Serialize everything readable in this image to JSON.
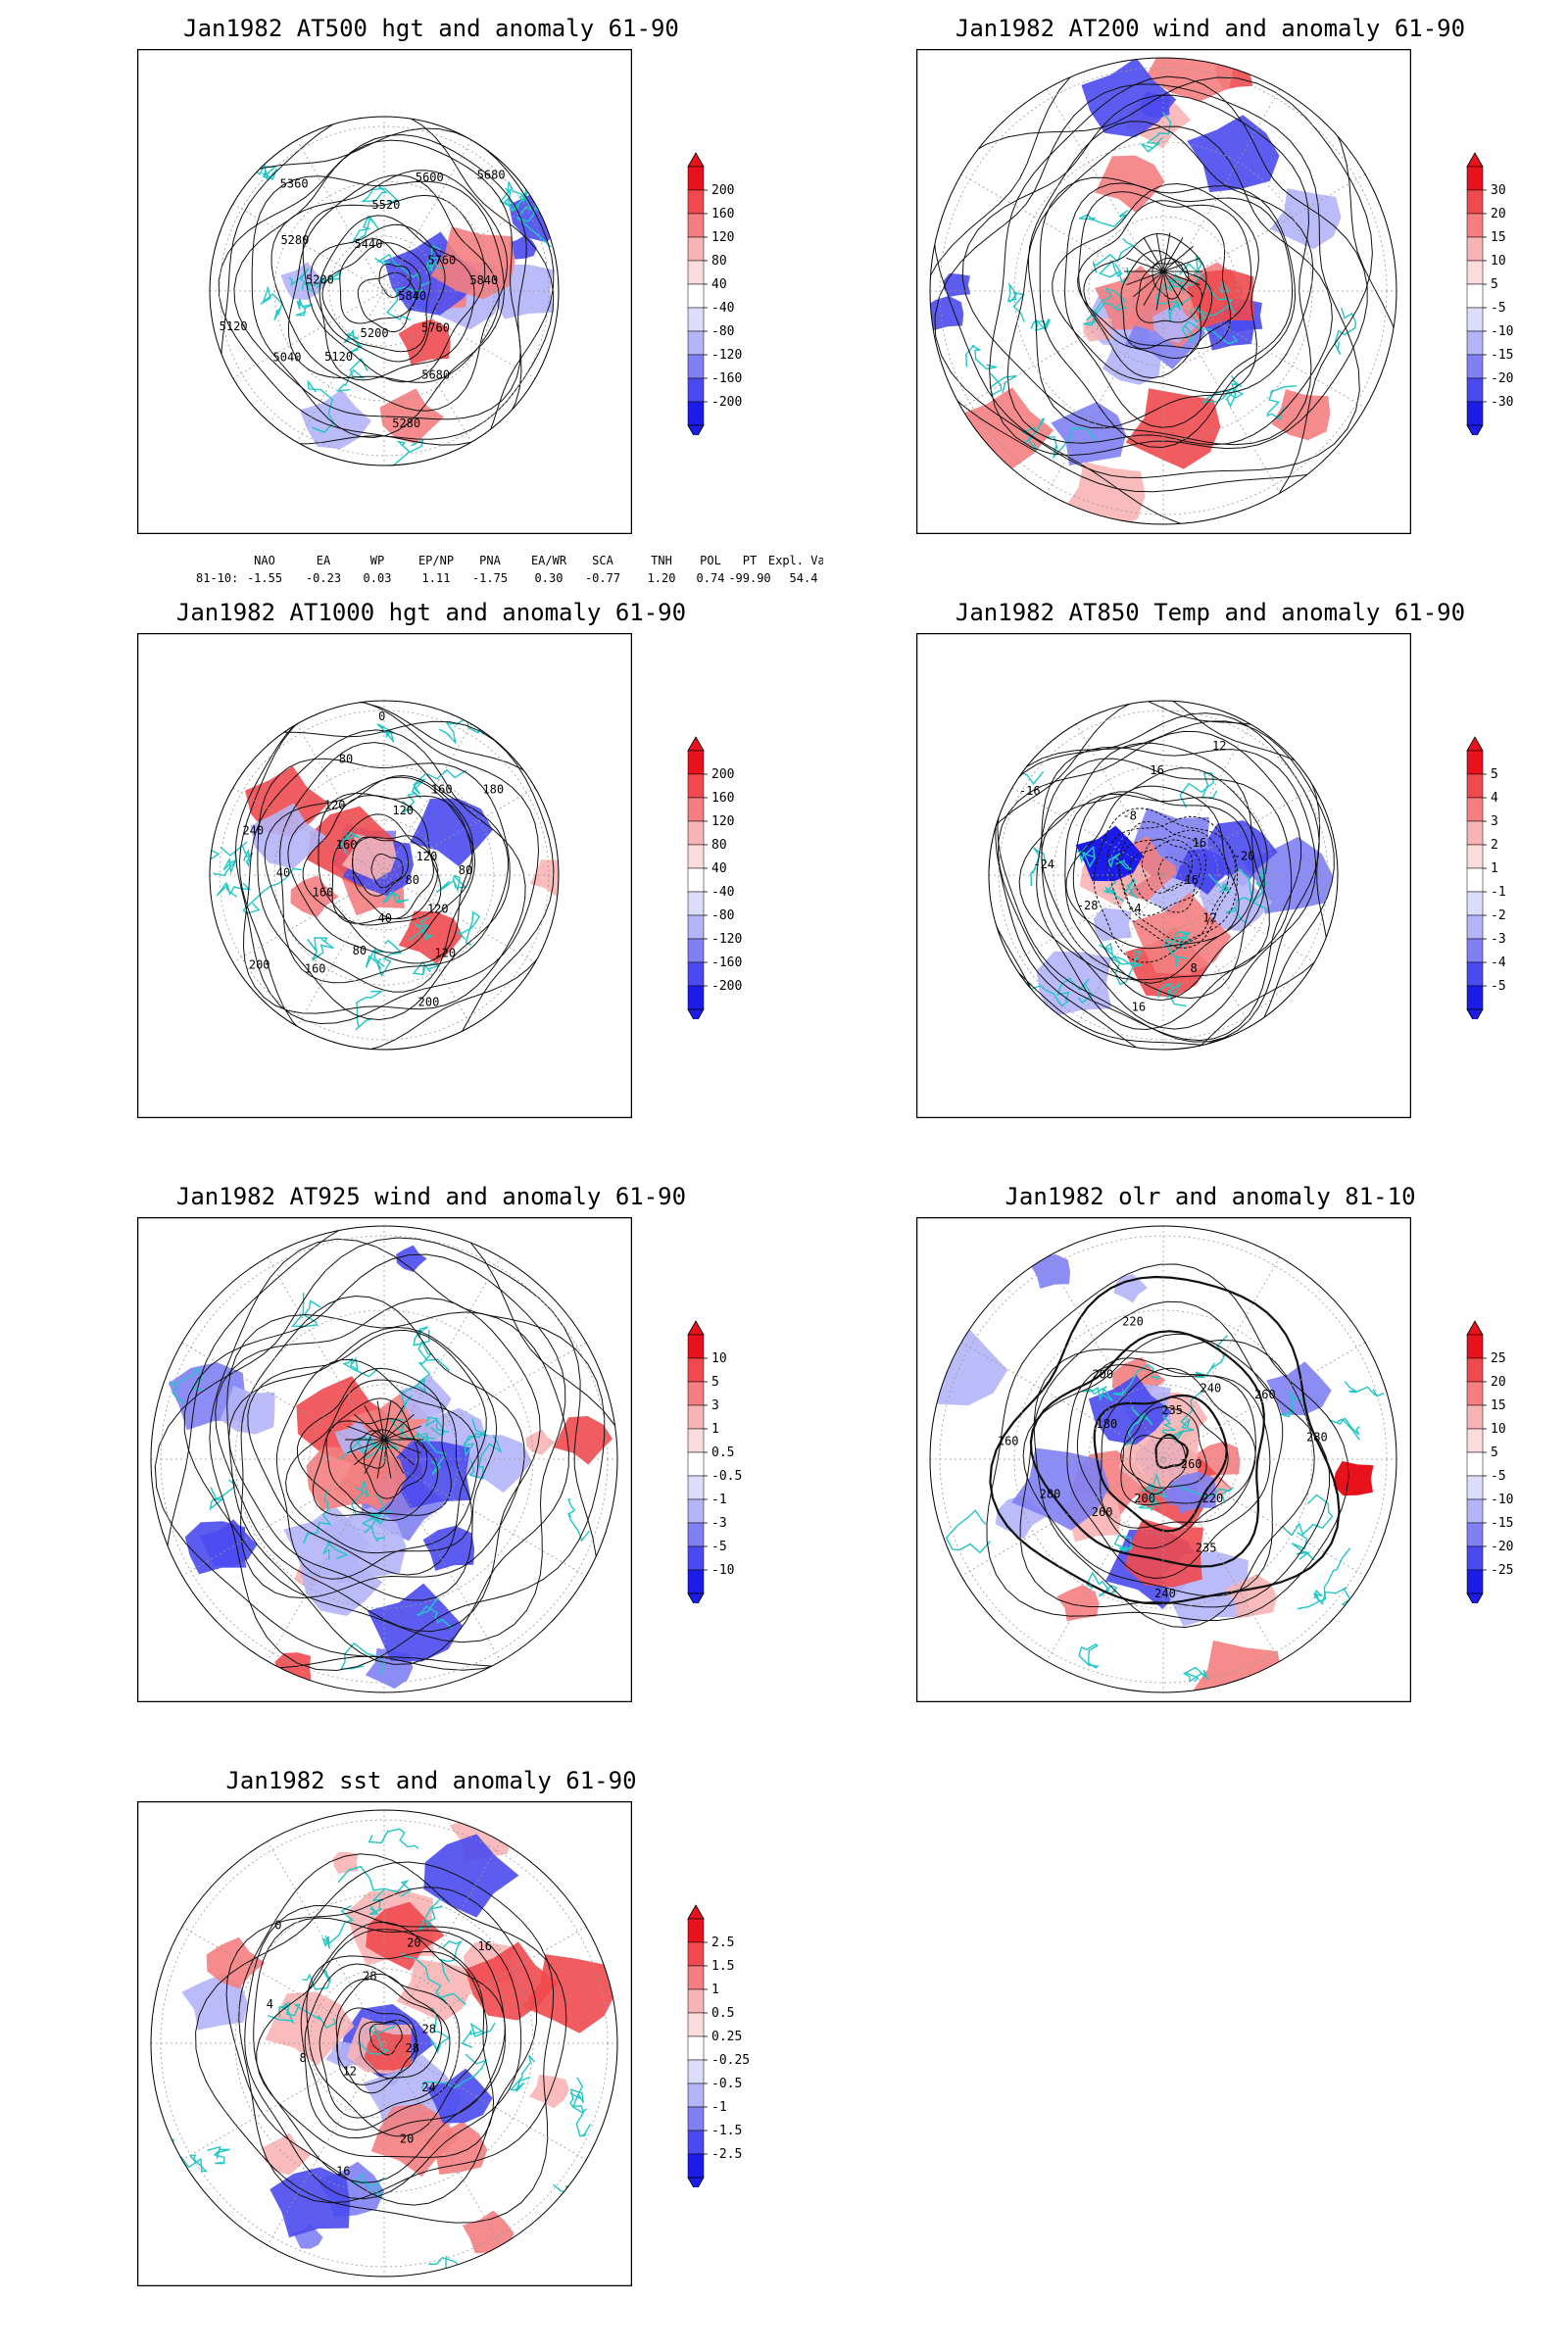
{
  "panels": [
    {
      "id": "p1",
      "title": "Jan1982 AT500 hgt and anomaly 61-90",
      "colorbar": [
        "200",
        "160",
        "120",
        "80",
        "40",
        "-40",
        "-80",
        "-120",
        "-160",
        "-200"
      ],
      "contour_labels": [
        "5840",
        "5760",
        "5680",
        "5280",
        "5200",
        "5120",
        "5040",
        "5120",
        "5200",
        "5280",
        "5360",
        "5440",
        "5520",
        "5600",
        "5680",
        "5760",
        "5840"
      ],
      "index_header": [
        "NAO",
        "EA",
        "WP",
        "EP/NP",
        "PNA",
        "EA/WR",
        "SCA",
        "TNH",
        "POL",
        "PT",
        "Expl. Var."
      ],
      "index_row_label": "81-10:",
      "index_values": [
        "-1.55",
        "-0.23",
        "0.03",
        "1.11",
        "-1.75",
        "0.30",
        "-0.77",
        "1.20",
        "0.74",
        "-99.90",
        "54.4"
      ]
    },
    {
      "id": "p2",
      "title": "Jan1982 AT200 wind and anomaly 61-90",
      "colorbar": [
        "30",
        "20",
        "15",
        "10",
        "5",
        "-5",
        "-10",
        "-15",
        "-20",
        "-30"
      ]
    },
    {
      "id": "p3",
      "title": "Jan1982 AT1000 hgt and anomaly 61-90",
      "colorbar": [
        "200",
        "160",
        "120",
        "80",
        "40",
        "-40",
        "-80",
        "-120",
        "-160",
        "-200"
      ],
      "contour_labels": [
        "80",
        "120",
        "120",
        "200",
        "40",
        "80",
        "160",
        "200",
        "160",
        "40",
        "240",
        "160",
        "120",
        "80",
        "0",
        "120",
        "160",
        "180",
        "120",
        "80"
      ]
    },
    {
      "id": "p4",
      "title": "Jan1982 AT850 Temp and anomaly 61-90",
      "colorbar": [
        "5",
        "4",
        "3",
        "2",
        "1",
        "-1",
        "-2",
        "-3",
        "-4",
        "-5"
      ],
      "contour_labels": [
        "16",
        "12",
        "8",
        "16",
        "-4",
        "-28",
        "-24",
        "-16",
        "-8",
        "16",
        "12",
        "16",
        "-20"
      ]
    },
    {
      "id": "p5",
      "title": "Jan1982 AT925 wind and anomaly 61-90",
      "colorbar": [
        "10",
        "5",
        "3",
        "1",
        "0.5",
        "-0.5",
        "-1",
        "-3",
        "-5",
        "-10"
      ]
    },
    {
      "id": "p6",
      "title": "Jan1982 olr and anomaly 81-10",
      "colorbar": [
        "25",
        "20",
        "15",
        "10",
        "5",
        "-5",
        "-10",
        "-15",
        "-20",
        "-25"
      ],
      "contour_labels": [
        "260",
        "220",
        "235",
        "240",
        "200",
        "260",
        "280",
        "160",
        "180",
        "200",
        "220",
        "235",
        "240",
        "260",
        "280"
      ]
    },
    {
      "id": "p7",
      "title": "Jan1982 sst and anomaly 61-90",
      "colorbar": [
        "2.5",
        "1.5",
        "1",
        "0.5",
        "0.25",
        "-0.25",
        "-0.5",
        "-1",
        "-1.5",
        "-2.5"
      ],
      "contour_labels": [
        "28",
        "24",
        "20",
        "16",
        "12",
        "8",
        "4",
        "0",
        "28",
        "20",
        "16",
        "28"
      ]
    }
  ],
  "colors": {
    "coast": "#21c6c6",
    "contour": "#111111",
    "scale": [
      "#e8111c",
      "#f04a4f",
      "#f47e80",
      "#f8b4b4",
      "#fbdcdc",
      "#ffffff",
      "#dcdcfb",
      "#b4b4f8",
      "#8080f4",
      "#4a4af0",
      "#1c1ce8"
    ]
  }
}
